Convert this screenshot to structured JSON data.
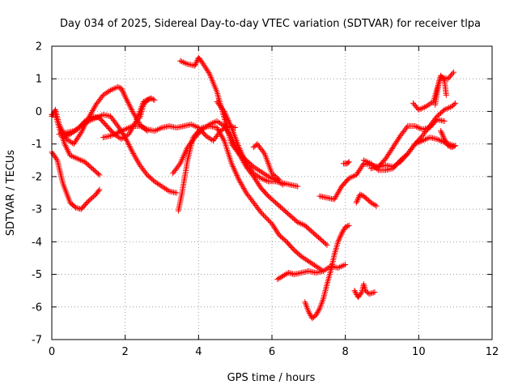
{
  "chart_data": {
    "type": "scatter",
    "title": "Day 034 of 2025, Sidereal Day-to-day VTEC variation (SDTVAR) for receiver tlpa",
    "xlabel": "GPS time / hours",
    "ylabel": "SDTVAR / TECUs",
    "xlim": [
      0,
      12
    ],
    "ylim": [
      -7,
      2
    ],
    "x_ticks": [
      0,
      2,
      4,
      6,
      8,
      10,
      12
    ],
    "y_ticks": [
      -7,
      -6,
      -5,
      -4,
      -3,
      -2,
      -1,
      0,
      1,
      2
    ],
    "grid": true,
    "legend": "none",
    "marker": "plus",
    "color": "#ff0000",
    "series": [
      {
        "x": [
          0.0,
          0.15,
          0.3,
          0.5,
          0.65,
          0.8,
          1.0,
          1.2,
          1.3
        ],
        "y": [
          -1.25,
          -1.5,
          -2.2,
          -2.8,
          -2.95,
          -3.0,
          -2.75,
          -2.55,
          -2.4
        ]
      },
      {
        "x": [
          0.0,
          0.1,
          0.2,
          0.35,
          0.5,
          0.7,
          0.9,
          1.1,
          1.3
        ],
        "y": [
          -0.1,
          -0.1,
          -0.5,
          -1.0,
          -1.35,
          -1.45,
          -1.55,
          -1.75,
          -1.95
        ]
      },
      {
        "x": [
          0.0,
          0.1,
          0.2,
          0.4,
          0.6,
          0.8,
          1.0,
          1.2,
          1.4,
          1.6,
          1.8,
          1.9,
          2.0,
          2.2,
          2.4,
          2.6
        ],
        "y": [
          -0.15,
          0.05,
          -0.4,
          -0.85,
          -1.0,
          -0.65,
          -0.2,
          0.2,
          0.5,
          0.65,
          0.75,
          0.7,
          0.45,
          0.0,
          -0.4,
          -0.6
        ]
      },
      {
        "x": [
          0.3,
          0.5,
          0.7,
          0.9,
          1.1,
          1.3,
          1.5,
          1.7,
          1.9,
          2.1,
          2.3,
          2.5,
          2.7
        ],
        "y": [
          -0.8,
          -0.7,
          -0.55,
          -0.3,
          -0.15,
          -0.2,
          -0.45,
          -0.7,
          -0.85,
          -0.7,
          -0.3,
          0.3,
          0.4
        ]
      },
      {
        "x": [
          0.2,
          0.4,
          0.6,
          0.8,
          1.0,
          1.2,
          1.4,
          1.6,
          1.8,
          2.0,
          2.2,
          2.4,
          2.6,
          2.8,
          3.0,
          3.2,
          3.4
        ],
        "y": [
          -0.7,
          -0.65,
          -0.6,
          -0.45,
          -0.3,
          -0.2,
          -0.1,
          -0.15,
          -0.45,
          -0.8,
          -1.25,
          -1.65,
          -1.95,
          -2.15,
          -2.3,
          -2.45,
          -2.5
        ]
      },
      {
        "x": [
          1.4,
          1.6,
          1.8,
          2.0,
          2.2,
          2.4,
          2.6,
          2.8,
          3.0,
          3.2,
          3.4,
          3.6,
          3.8,
          4.0,
          4.2,
          4.4,
          4.6,
          4.8,
          5.0
        ],
        "y": [
          -0.8,
          -0.75,
          -0.65,
          -0.55,
          -0.45,
          -0.45,
          -0.55,
          -0.6,
          -0.5,
          -0.45,
          -0.5,
          -0.45,
          -0.4,
          -0.5,
          -0.75,
          -0.9,
          -0.6,
          -0.45,
          -0.5
        ]
      },
      {
        "x": [
          2.4,
          2.5,
          2.6,
          2.7,
          2.8
        ],
        "y": [
          -0.2,
          0.2,
          0.35,
          0.4,
          0.35
        ]
      },
      {
        "x": [
          3.45,
          3.55,
          3.7,
          3.85,
          4.0,
          4.1,
          4.3,
          4.5,
          4.7,
          4.9,
          5.1,
          5.3,
          5.5,
          5.7,
          6.0,
          6.2,
          6.4,
          6.6,
          6.8,
          7.0,
          7.2,
          7.4,
          7.6,
          7.8,
          8.0
        ],
        "y": [
          -3.05,
          -2.5,
          -1.5,
          -0.8,
          -0.6,
          -0.5,
          -0.45,
          -0.5,
          -0.9,
          -1.6,
          -2.1,
          -2.5,
          -2.8,
          -3.1,
          -3.45,
          -3.8,
          -4.0,
          -4.25,
          -4.45,
          -4.6,
          -4.75,
          -4.9,
          -4.75,
          -4.8,
          -4.7
        ]
      },
      {
        "x": [
          3.3,
          3.5,
          3.7,
          3.9,
          4.1,
          4.3,
          4.5,
          4.7,
          4.9,
          5.1,
          5.3,
          5.5,
          5.7,
          5.9,
          6.1,
          6.3,
          6.5,
          6.7,
          6.9,
          7.1,
          7.3,
          7.5
        ],
        "y": [
          -1.9,
          -1.6,
          -1.1,
          -0.8,
          -0.55,
          -0.4,
          -0.3,
          -0.45,
          -0.8,
          -1.3,
          -1.7,
          -2.0,
          -2.35,
          -2.6,
          -2.8,
          -3.0,
          -3.2,
          -3.4,
          -3.5,
          -3.7,
          -3.9,
          -4.1
        ]
      },
      {
        "x": [
          3.5,
          3.7,
          3.9,
          4.0,
          4.1,
          4.3,
          4.5,
          4.7,
          4.9,
          5.1,
          5.3,
          5.5,
          5.7,
          5.9,
          6.1,
          6.3
        ],
        "y": [
          1.55,
          1.45,
          1.4,
          1.65,
          1.5,
          1.15,
          0.6,
          -0.2,
          -1.0,
          -1.3,
          -1.5,
          -1.7,
          -1.85,
          -2.0,
          -2.1,
          -2.25
        ]
      },
      {
        "x": [
          4.5,
          4.7,
          4.9,
          5.1,
          5.3,
          5.5,
          5.7,
          5.9,
          6.1,
          6.3,
          6.5,
          6.7
        ],
        "y": [
          0.3,
          0.0,
          -0.5,
          -1.1,
          -1.6,
          -1.9,
          -2.05,
          -2.15,
          -2.15,
          -2.2,
          -2.25,
          -2.3
        ]
      },
      {
        "x": [
          5.5,
          5.6,
          5.8,
          6.0,
          6.2
        ],
        "y": [
          -1.1,
          -1.0,
          -1.3,
          -1.9,
          -2.1
        ]
      },
      {
        "x": [
          6.15,
          6.3,
          6.45,
          6.6,
          6.8,
          7.0,
          7.2,
          7.4
        ],
        "y": [
          -5.15,
          -5.05,
          -4.95,
          -5.0,
          -4.95,
          -4.9,
          -4.95,
          -4.9
        ]
      },
      {
        "x": [
          6.9,
          7.0,
          7.1,
          7.2,
          7.3,
          7.4,
          7.5,
          7.6,
          7.7,
          7.8,
          7.9,
          8.0,
          8.1
        ],
        "y": [
          -5.85,
          -6.15,
          -6.35,
          -6.25,
          -6.05,
          -5.75,
          -5.3,
          -4.9,
          -4.4,
          -4.0,
          -3.75,
          -3.55,
          -3.5
        ]
      },
      {
        "x": [
          7.3,
          7.5,
          7.7,
          7.9,
          8.1,
          8.3,
          8.5,
          8.7,
          8.9,
          9.1,
          9.3,
          9.5,
          9.7,
          9.9,
          10.1,
          10.3,
          10.5,
          10.7
        ],
        "y": [
          -2.6,
          -2.65,
          -2.7,
          -2.3,
          -2.05,
          -1.95,
          -1.6,
          -1.65,
          -1.7,
          -1.45,
          -1.1,
          -0.75,
          -0.45,
          -0.45,
          -0.55,
          -0.5,
          -0.25,
          -0.3
        ]
      },
      {
        "x": [
          7.95,
          8.05,
          8.1
        ],
        "y": [
          -1.6,
          -1.6,
          -1.55
        ]
      },
      {
        "x": [
          8.3,
          8.4,
          8.5,
          8.6,
          8.7,
          8.85
        ],
        "y": [
          -2.8,
          -2.55,
          -2.6,
          -2.7,
          -2.8,
          -2.9
        ]
      },
      {
        "x": [
          8.25,
          8.35,
          8.45,
          8.5,
          8.55,
          8.65,
          8.8
        ],
        "y": [
          -5.5,
          -5.7,
          -5.55,
          -5.3,
          -5.5,
          -5.6,
          -5.55
        ]
      },
      {
        "x": [
          8.5,
          8.7,
          8.9,
          9.1,
          9.3,
          9.5,
          9.7,
          9.9,
          10.1,
          10.3,
          10.5,
          10.7,
          10.95
        ],
        "y": [
          -1.5,
          -1.6,
          -1.8,
          -1.8,
          -1.75,
          -1.5,
          -1.3,
          -1.0,
          -0.9,
          -0.8,
          -0.85,
          -0.95,
          -1.05
        ]
      },
      {
        "x": [
          8.7,
          8.9,
          9.1,
          9.3,
          9.5,
          9.7,
          9.9,
          10.1,
          10.3,
          10.5,
          10.7,
          10.9,
          11.0
        ],
        "y": [
          -1.75,
          -1.7,
          -1.65,
          -1.7,
          -1.55,
          -1.3,
          -1.0,
          -0.75,
          -0.45,
          -0.15,
          0.05,
          0.15,
          0.25
        ]
      },
      {
        "x": [
          9.85,
          10.0,
          10.2,
          10.4,
          10.5,
          10.6,
          10.8,
          10.95
        ],
        "y": [
          0.25,
          0.05,
          0.15,
          0.3,
          0.7,
          1.05,
          1.0,
          1.2
        ]
      },
      {
        "x": [
          10.45,
          10.55,
          10.6,
          10.7,
          10.75
        ],
        "y": [
          0.2,
          0.9,
          1.1,
          0.95,
          0.5
        ]
      },
      {
        "x": [
          10.6,
          10.7,
          10.8,
          10.9,
          11.0
        ],
        "y": [
          -0.6,
          -0.85,
          -1.05,
          -1.1,
          -1.05
        ]
      }
    ]
  }
}
